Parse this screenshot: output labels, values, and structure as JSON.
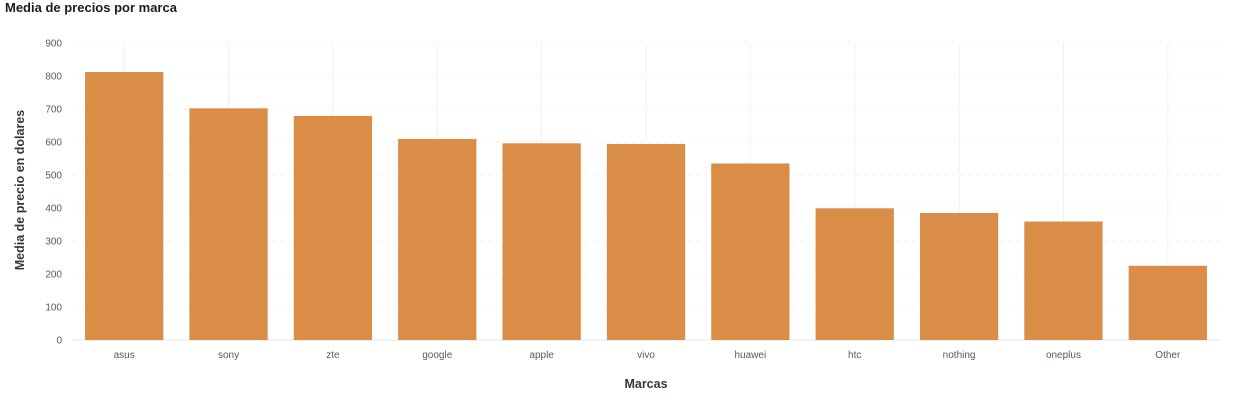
{
  "chart_data": {
    "type": "bar",
    "title": "Media de precios por marca",
    "xlabel": "Marcas",
    "ylabel": "Media de precio en dolares",
    "categories": [
      "asus",
      "sony",
      "zte",
      "google",
      "apple",
      "vivo",
      "huawei",
      "htc",
      "nothing",
      "oneplus",
      "Other"
    ],
    "values": [
      812,
      702,
      679,
      609,
      596,
      594,
      535,
      399,
      385,
      359,
      225
    ],
    "ylim": [
      0,
      900
    ],
    "yticks": [
      0,
      100,
      200,
      300,
      400,
      500,
      600,
      700,
      800,
      900
    ],
    "grid": true,
    "legend": "none",
    "colors": {
      "bar": "#D98D47",
      "grid": "#eef0f3",
      "text": "#535966"
    }
  }
}
